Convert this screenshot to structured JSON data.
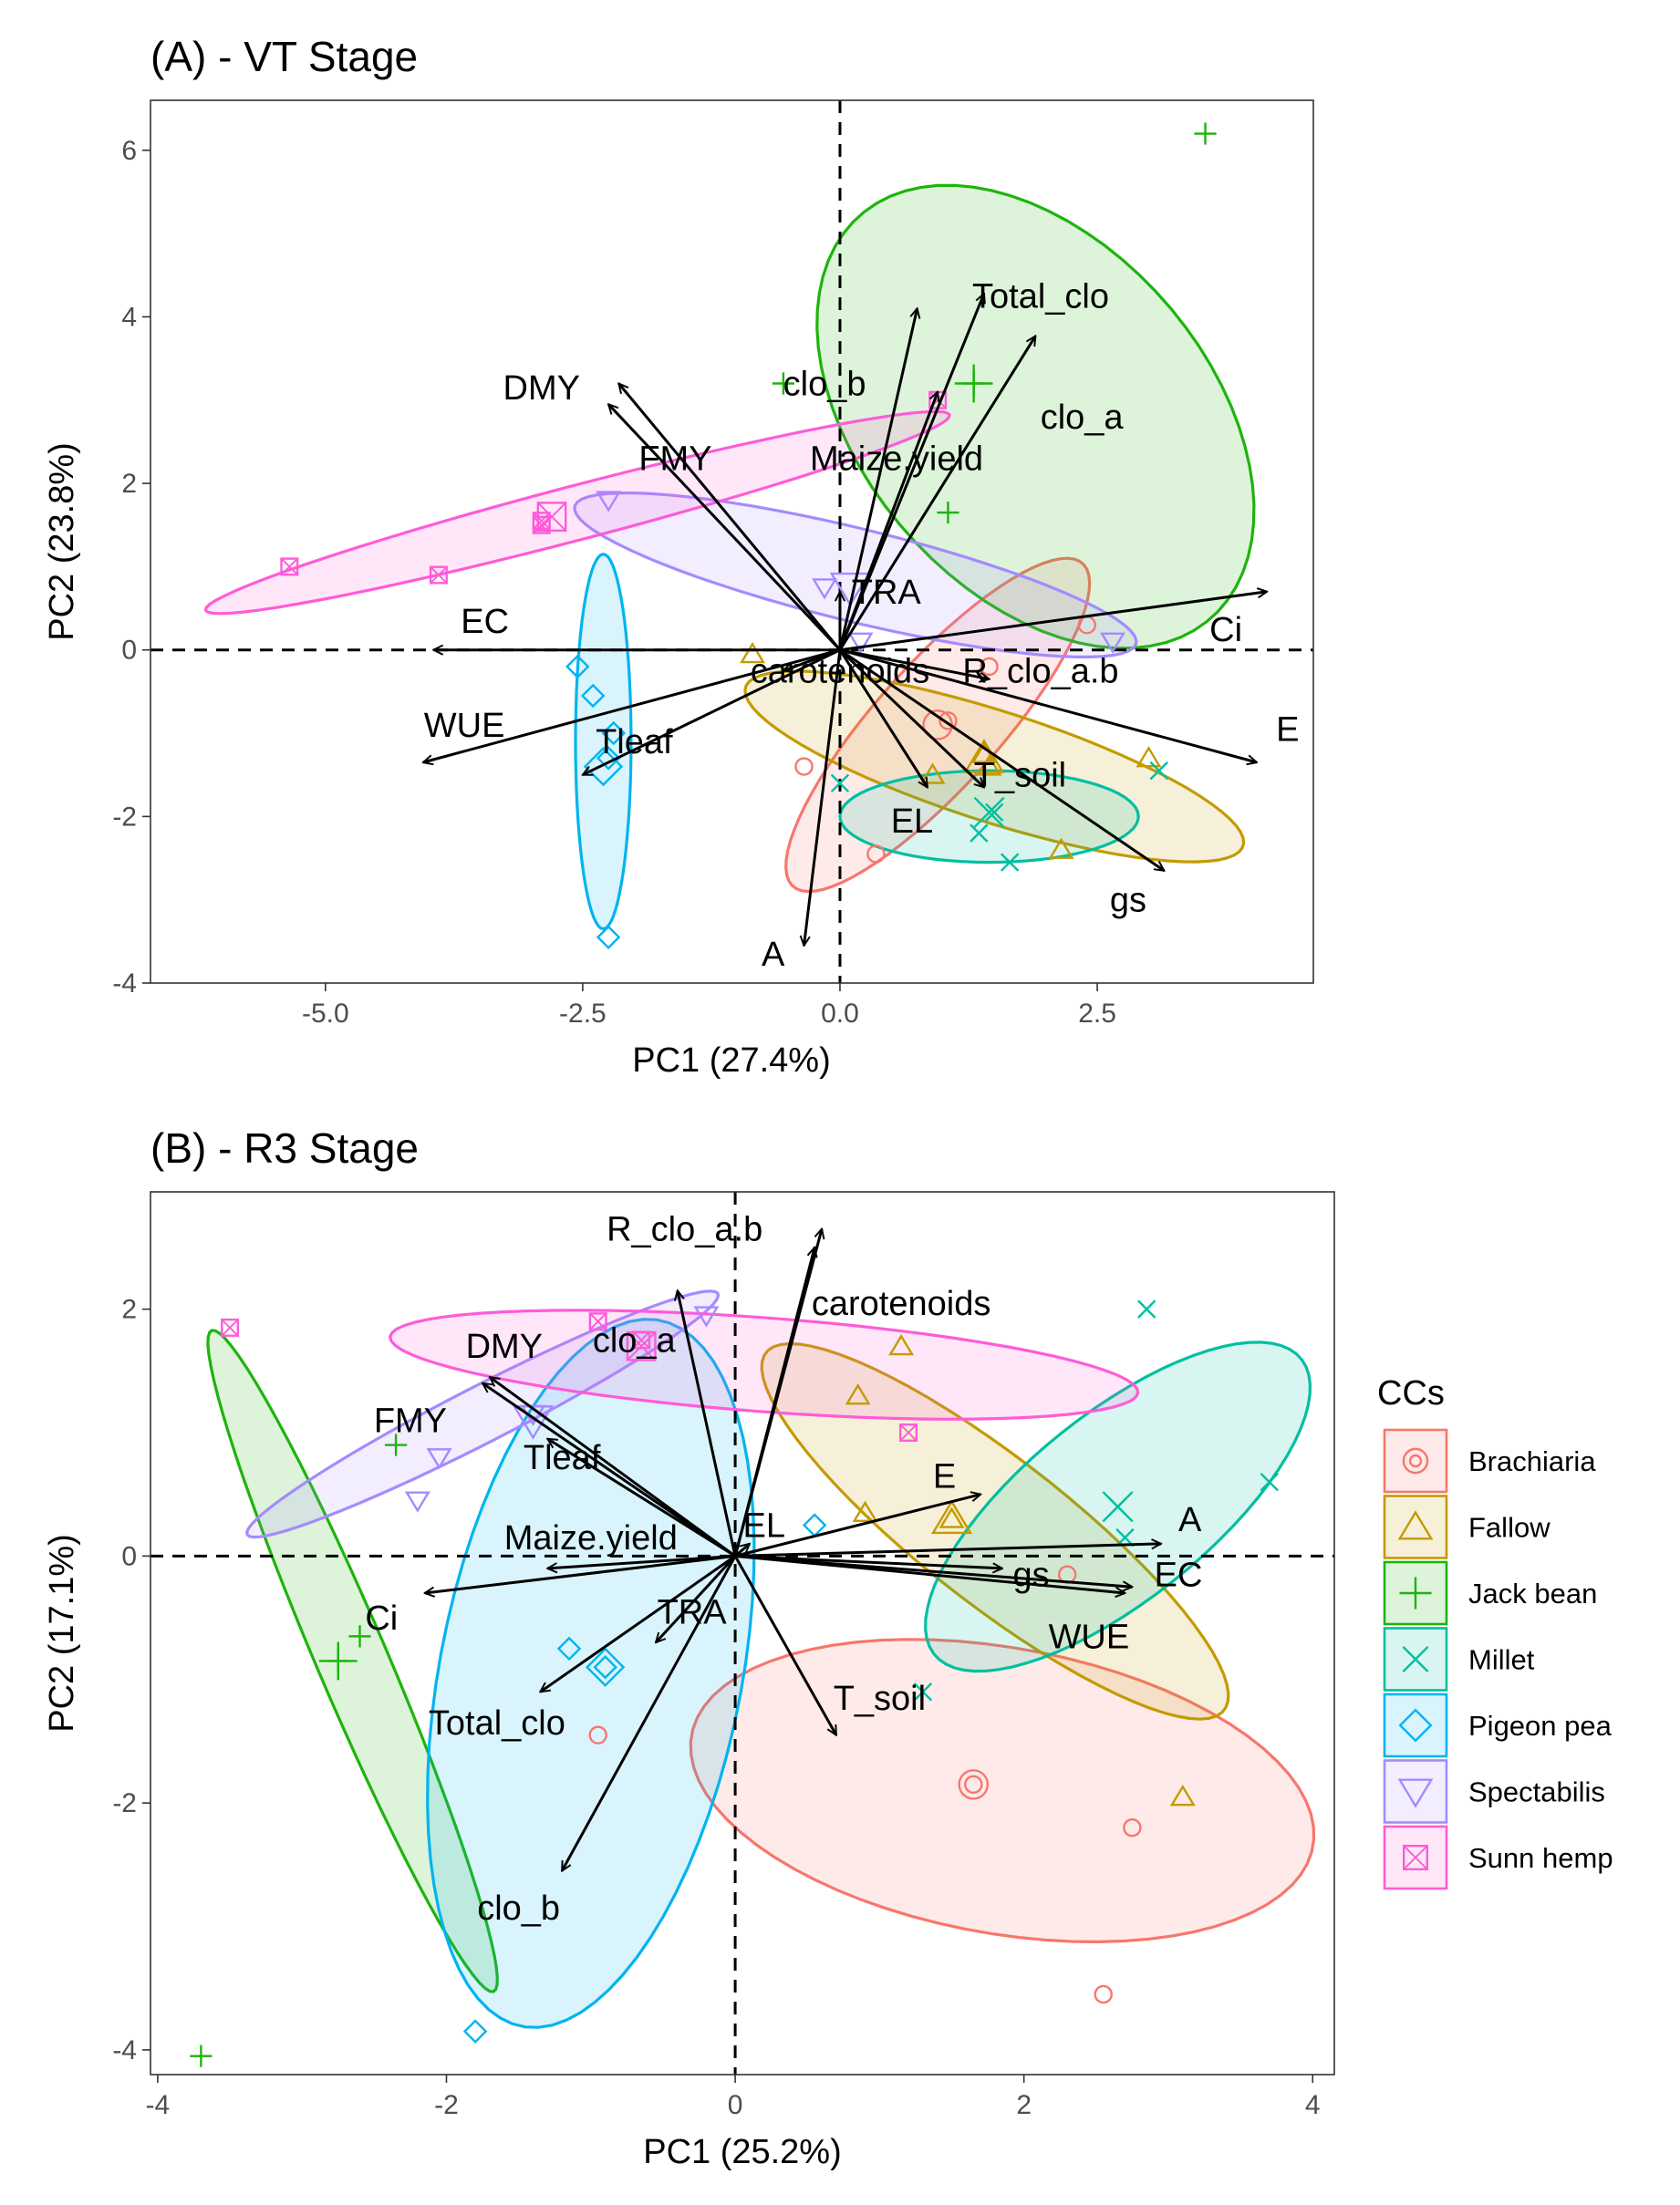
{
  "legend": {
    "title": "CCs",
    "items": [
      {
        "label": "Brachiaria",
        "color": "#F8766D",
        "shape": "circle"
      },
      {
        "label": "Fallow",
        "color": "#C49A00",
        "shape": "triangle"
      },
      {
        "label": "Jack bean",
        "color": "#1DB40C",
        "shape": "plus"
      },
      {
        "label": "Millet",
        "color": "#00BFA0",
        "shape": "cross"
      },
      {
        "label": "Pigeon pea",
        "color": "#00B4EF",
        "shape": "diamond"
      },
      {
        "label": "Spectabilis",
        "color": "#A58AFF",
        "shape": "triangle-down"
      },
      {
        "label": "Sunn hemp",
        "color": "#FF5BD8",
        "shape": "square-cross"
      }
    ]
  },
  "chart_data": [
    {
      "type": "scatter",
      "subtype": "PCA biplot",
      "title": "(A) - VT Stage",
      "xlabel": "PC1 (27.4%)",
      "ylabel": "PC2 (23.8%)",
      "xlim": [
        -6.7,
        4.6
      ],
      "ylim": [
        -4.0,
        6.6
      ],
      "xticks": [
        -5.0,
        -2.5,
        0.0,
        2.5
      ],
      "xtick_labels": [
        "-5.0",
        "-2.5",
        "0.0",
        "2.5"
      ],
      "yticks": [
        -4,
        -2,
        0,
        2,
        4,
        6
      ],
      "ytick_labels": [
        "-4",
        "-2",
        "0",
        "2",
        "4",
        "6"
      ],
      "reference_lines": {
        "x": 0,
        "y": 0,
        "style": "dashed"
      },
      "vectors": [
        {
          "name": "Total_clo",
          "x": 1.4,
          "y": 4.28,
          "label_x": 1.95,
          "label_y": 4.25
        },
        {
          "name": "clo_b",
          "x": 0.75,
          "y": 4.1,
          "label_x": -0.15,
          "label_y": 3.2
        },
        {
          "name": "clo_a",
          "x": 1.9,
          "y": 3.77,
          "label_x": 2.35,
          "label_y": 2.8
        },
        {
          "name": "DMY",
          "x": -2.15,
          "y": 3.2,
          "label_x": -2.9,
          "label_y": 3.15
        },
        {
          "name": "FMY",
          "x": -2.25,
          "y": 2.95,
          "label_x": -1.6,
          "label_y": 2.3
        },
        {
          "name": "Maize.yield",
          "x": 0.95,
          "y": 3.1,
          "label_x": 0.55,
          "label_y": 2.3
        },
        {
          "name": "TRA",
          "x": 0.0,
          "y": 0.7,
          "label_x": 0.45,
          "label_y": 0.7
        },
        {
          "name": "Ci",
          "x": 4.15,
          "y": 0.7,
          "label_x": 3.75,
          "label_y": 0.25
        },
        {
          "name": "R_clo_a.b",
          "x": 1.45,
          "y": -0.35,
          "label_x": 1.95,
          "label_y": -0.25
        },
        {
          "name": "EC",
          "x": -3.95,
          "y": 0.0,
          "label_x": -3.45,
          "label_y": 0.35
        },
        {
          "name": "carotenoids",
          "x": -0.55,
          "y": -0.25,
          "label_x": 0.0,
          "label_y": -0.25
        },
        {
          "name": "E",
          "x": 4.05,
          "y": -1.35,
          "label_x": 4.35,
          "label_y": -0.95
        },
        {
          "name": "WUE",
          "x": -4.05,
          "y": -1.35,
          "label_x": -3.65,
          "label_y": -0.9
        },
        {
          "name": "Tleaf",
          "x": -2.5,
          "y": -1.5,
          "label_x": -2.0,
          "label_y": -1.1
        },
        {
          "name": "T_soil",
          "x": 1.4,
          "y": -1.65,
          "label_x": 1.75,
          "label_y": -1.5
        },
        {
          "name": "EL",
          "x": 0.85,
          "y": -1.65,
          "label_x": 0.7,
          "label_y": -2.05
        },
        {
          "name": "gs",
          "x": 3.15,
          "y": -2.65,
          "label_x": 2.8,
          "label_y": -3.0
        },
        {
          "name": "A",
          "x": -0.35,
          "y": -3.55,
          "label_x": -0.65,
          "label_y": -3.65
        }
      ],
      "groups": [
        {
          "name": "Brachiaria",
          "points": [
            [
              1.05,
              -0.85
            ],
            [
              1.45,
              -0.2
            ],
            [
              2.4,
              0.3
            ],
            [
              -0.35,
              -1.4
            ],
            [
              0.35,
              -2.45
            ]
          ],
          "centroid": [
            0.95,
            -0.9
          ],
          "ellipse": {
            "cx": 0.95,
            "cy": -0.9,
            "rx": 2.4,
            "ry": 0.65,
            "angle": 55
          }
        },
        {
          "name": "Fallow",
          "points": [
            [
              1.4,
              -1.25
            ],
            [
              1.45,
              -1.4
            ],
            [
              0.9,
              -1.5
            ],
            [
              2.15,
              -2.4
            ],
            [
              3.0,
              -1.3
            ],
            [
              -0.85,
              -0.05
            ]
          ],
          "centroid": [
            1.4,
            -1.3
          ],
          "ellipse": {
            "cx": 1.5,
            "cy": -1.4,
            "rx": 2.6,
            "ry": 0.65,
            "angle": -22
          }
        },
        {
          "name": "Jack bean",
          "points": [
            [
              3.55,
              6.2
            ],
            [
              -0.55,
              3.2
            ],
            [
              1.3,
              3.2
            ],
            [
              1.05,
              1.65
            ]
          ],
          "centroid": [
            1.3,
            3.2
          ],
          "ellipse": {
            "cx": 1.9,
            "cy": 2.8,
            "rx": 1.8,
            "ry": 3.0,
            "angle": 28
          }
        },
        {
          "name": "Millet",
          "points": [
            [
              1.5,
              -1.95
            ],
            [
              1.35,
              -2.2
            ],
            [
              1.65,
              -2.55
            ],
            [
              3.1,
              -1.45
            ],
            [
              0.0,
              -1.6
            ]
          ],
          "centroid": [
            1.45,
            -1.95
          ],
          "ellipse": {
            "cx": 1.45,
            "cy": -2.0,
            "rx": 1.45,
            "ry": 0.55,
            "angle": 0
          }
        },
        {
          "name": "Pigeon pea",
          "points": [
            [
              -2.55,
              -0.2
            ],
            [
              -2.4,
              -0.55
            ],
            [
              -2.2,
              -1.0
            ],
            [
              -2.25,
              -1.3
            ],
            [
              -2.25,
              -3.45
            ]
          ],
          "centroid": [
            -2.3,
            -1.4
          ],
          "ellipse": {
            "cx": -2.3,
            "cy": -1.1,
            "rx": 0.27,
            "ry": 2.25,
            "angle": 0
          }
        },
        {
          "name": "Spectabilis",
          "points": [
            [
              -2.25,
              1.8
            ],
            [
              -0.15,
              0.75
            ],
            [
              0.2,
              0.1
            ],
            [
              2.65,
              0.1
            ]
          ],
          "centroid": [
            0.1,
            0.75
          ],
          "ellipse": {
            "cx": 0.15,
            "cy": 0.9,
            "rx": 2.85,
            "ry": 0.55,
            "angle": -17
          }
        },
        {
          "name": "Sunn hemp",
          "points": [
            [
              -5.35,
              1.0
            ],
            [
              -3.9,
              0.9
            ],
            [
              -2.9,
              1.55
            ],
            [
              -2.9,
              1.5
            ],
            [
              0.95,
              3.0
            ]
          ],
          "centroid": [
            -2.8,
            1.6
          ],
          "ellipse": {
            "cx": -2.55,
            "cy": 1.65,
            "rx": 3.8,
            "ry": 0.32,
            "angle": 18
          }
        }
      ]
    },
    {
      "type": "scatter",
      "subtype": "PCA biplot",
      "title": "(B) - R3 Stage",
      "xlabel": "PC1 (25.2%)",
      "ylabel": "PC2 (17.1%)",
      "xlim": [
        -4.05,
        4.15
      ],
      "ylim": [
        -4.2,
        2.95
      ],
      "xticks": [
        -4,
        -2,
        0,
        2,
        4
      ],
      "xtick_labels": [
        "-4",
        "-2",
        "0",
        "2",
        "4"
      ],
      "yticks": [
        -4,
        -2,
        0,
        2
      ],
      "ytick_labels": [
        "-4",
        "-2",
        "0",
        "2"
      ],
      "reference_lines": {
        "x": 0,
        "y": 0,
        "style": "dashed"
      },
      "vectors": [
        {
          "name": "R_clo_a.b",
          "x": 0.6,
          "y": 2.65,
          "label_x": -0.35,
          "label_y": 2.65
        },
        {
          "name": "carotenoids",
          "x": 0.55,
          "y": 2.5,
          "label_x": 1.15,
          "label_y": 2.05
        },
        {
          "name": "clo_a",
          "x": -0.4,
          "y": 2.15,
          "label_x": -0.7,
          "label_y": 1.75
        },
        {
          "name": "DMY",
          "x": -1.7,
          "y": 1.45,
          "label_x": -1.6,
          "label_y": 1.7
        },
        {
          "name": "FMY",
          "x": -1.75,
          "y": 1.4,
          "label_x": -2.25,
          "label_y": 1.1
        },
        {
          "name": "Tleaf",
          "x": -1.3,
          "y": 0.95,
          "label_x": -1.2,
          "label_y": 0.8
        },
        {
          "name": "E",
          "x": 1.7,
          "y": 0.5,
          "label_x": 1.45,
          "label_y": 0.65
        },
        {
          "name": "A",
          "x": 2.95,
          "y": 0.1,
          "label_x": 3.15,
          "label_y": 0.3
        },
        {
          "name": "EC",
          "x": 2.7,
          "y": -0.3,
          "label_x": 3.07,
          "label_y": -0.15
        },
        {
          "name": "WUE",
          "x": 2.75,
          "y": -0.25,
          "label_x": 2.45,
          "label_y": -0.65
        },
        {
          "name": "gs",
          "x": 1.85,
          "y": -0.1,
          "label_x": 2.05,
          "label_y": -0.15
        },
        {
          "name": "EL",
          "x": 0.1,
          "y": 0.1,
          "label_x": 0.2,
          "label_y": 0.25
        },
        {
          "name": "Maize.yield",
          "x": -1.3,
          "y": -0.1,
          "label_x": -1.0,
          "label_y": 0.15
        },
        {
          "name": "Ci",
          "x": -2.15,
          "y": -0.3,
          "label_x": -2.45,
          "label_y": -0.5
        },
        {
          "name": "TRA",
          "x": -0.55,
          "y": -0.7,
          "label_x": -0.3,
          "label_y": -0.45
        },
        {
          "name": "Total_clo",
          "x": -1.35,
          "y": -1.1,
          "label_x": -1.65,
          "label_y": -1.35
        },
        {
          "name": "T_soil",
          "x": 0.7,
          "y": -1.45,
          "label_x": 1.0,
          "label_y": -1.15
        },
        {
          "name": "clo_b",
          "x": -1.2,
          "y": -2.55,
          "label_x": -1.5,
          "label_y": -2.85
        }
      ],
      "groups": [
        {
          "name": "Brachiaria",
          "points": [
            [
              1.65,
              -1.85
            ],
            [
              2.75,
              -2.2
            ],
            [
              2.55,
              -3.55
            ],
            [
              -0.95,
              -1.45
            ],
            [
              2.3,
              -0.15
            ]
          ],
          "centroid": [
            1.65,
            -1.85
          ],
          "ellipse": {
            "cx": 1.85,
            "cy": -1.9,
            "rx": 2.2,
            "ry": 1.15,
            "angle": -13
          }
        },
        {
          "name": "Fallow",
          "points": [
            [
              1.15,
              1.7
            ],
            [
              0.85,
              1.3
            ],
            [
              0.9,
              0.35
            ],
            [
              1.5,
              0.3
            ],
            [
              3.1,
              -1.95
            ]
          ],
          "centroid": [
            1.5,
            0.3
          ],
          "ellipse": {
            "cx": 1.8,
            "cy": 0.2,
            "rx": 2.15,
            "ry": 0.55,
            "angle": -43
          }
        },
        {
          "name": "Jack bean",
          "points": [
            [
              -2.35,
              0.9
            ],
            [
              -2.6,
              -0.65
            ],
            [
              -2.75,
              -0.85
            ],
            [
              -3.7,
              -4.05
            ]
          ],
          "centroid": [
            -2.75,
            -0.85
          ],
          "ellipse": {
            "cx": -2.65,
            "cy": -0.85,
            "rx": 2.85,
            "ry": 0.25,
            "angle": -70
          }
        },
        {
          "name": "Millet",
          "points": [
            [
              2.85,
              2.0
            ],
            [
              3.7,
              0.6
            ],
            [
              2.65,
              0.4
            ],
            [
              2.7,
              0.15
            ],
            [
              1.3,
              -1.1
            ]
          ],
          "centroid": [
            2.65,
            0.4
          ],
          "ellipse": {
            "cx": 2.65,
            "cy": 0.4,
            "rx": 1.75,
            "ry": 0.7,
            "angle": 45
          }
        },
        {
          "name": "Pigeon pea",
          "points": [
            [
              0.55,
              0.25
            ],
            [
              -1.15,
              -0.75
            ],
            [
              -0.9,
              -0.9
            ],
            [
              -1.8,
              -3.85
            ]
          ],
          "centroid": [
            -0.9,
            -0.9
          ],
          "ellipse": {
            "cx": -1.0,
            "cy": -0.95,
            "rx": 2.9,
            "ry": 1.05,
            "angle": 81
          }
        },
        {
          "name": "Spectabilis",
          "points": [
            [
              -0.2,
              1.95
            ],
            [
              -1.4,
              1.15
            ],
            [
              -2.05,
              0.8
            ],
            [
              -2.2,
              0.45
            ]
          ],
          "centroid": [
            -1.4,
            1.1
          ],
          "ellipse": {
            "cx": -1.75,
            "cy": 1.15,
            "rx": 1.9,
            "ry": 0.22,
            "angle": 31
          }
        },
        {
          "name": "Sunn hemp",
          "points": [
            [
              -3.5,
              1.85
            ],
            [
              -0.95,
              1.9
            ],
            [
              -0.65,
              1.75
            ],
            [
              1.2,
              1.0
            ]
          ],
          "centroid": [
            -0.65,
            1.7
          ],
          "ellipse": {
            "cx": 0.2,
            "cy": 1.55,
            "rx": 2.6,
            "ry": 0.38,
            "angle": -5
          }
        }
      ]
    }
  ]
}
